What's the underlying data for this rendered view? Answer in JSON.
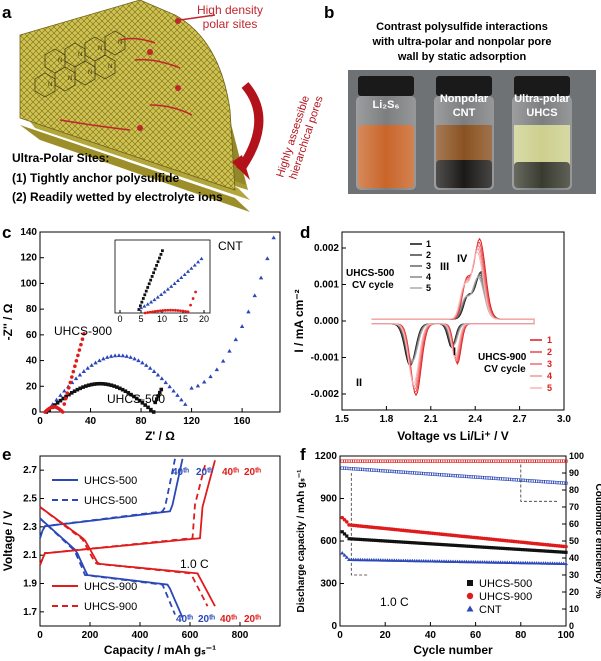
{
  "panel_labels": {
    "a": "a",
    "b": "b",
    "c": "c",
    "d": "d",
    "e": "e",
    "f": "f"
  },
  "panel_a": {
    "callout_top": [
      "High density",
      "polar sites"
    ],
    "callout_arrow": [
      "Highly assessible",
      "hierarchical pores"
    ],
    "title": "Ultra-Polar Sites:",
    "point1": "(1) Tightly anchor polysulfide",
    "point2": "(2) Readily wetted by electrolyte ions",
    "colors": {
      "sheet": "#c9bd4a",
      "arrow": "#b3121b"
    }
  },
  "panel_b": {
    "title": [
      "Contrast polysulfide interactions",
      "with ultra-polar and nonpolar pore",
      "wall by static adsorption"
    ],
    "vial1": [
      "Li₂S₆"
    ],
    "vial2": [
      "Nonpolar",
      "CNT"
    ],
    "vial3": [
      "Ultra-polar",
      "UHCS"
    ],
    "colors": {
      "bg": "#6f7275",
      "li2s6": "#c9652a",
      "cnt": "#8a5222",
      "uhcs": "#cdd08f"
    }
  },
  "chart_data": [
    {
      "panel": "c",
      "type": "scatter",
      "xlabel": "Z' / Ω",
      "ylabel": "-Z'' / Ω",
      "xlim": [
        0,
        190
      ],
      "ylim": [
        0,
        140
      ],
      "xticks": [
        "0",
        "40",
        "80",
        "120",
        "160"
      ],
      "yticks": [
        "0",
        "20",
        "40",
        "60",
        "80",
        "100",
        "120",
        "140"
      ],
      "inset": {
        "xticks": [
          "0",
          "5",
          "10",
          "15",
          "20"
        ],
        "xlim": [
          0,
          21
        ],
        "ylim": [
          0,
          20
        ]
      },
      "labels": {
        "cnt": "CNT",
        "uhcs900": "UHCS-900",
        "uhcs500": "UHCS-500"
      },
      "series": [
        {
          "name": "CNT",
          "color": "#2b47b8",
          "marker": "triangle"
        },
        {
          "name": "UHCS-500",
          "color": "#111111",
          "marker": "square"
        },
        {
          "name": "UHCS-900",
          "color": "#e01b1b",
          "marker": "circle"
        }
      ]
    },
    {
      "panel": "d",
      "type": "line",
      "xlabel": "Voltage vs Li/Li⁺ / V",
      "ylabel": "I / mA cm⁻²",
      "xlim": [
        1.5,
        3.0
      ],
      "ylim": [
        -0.0025,
        0.0025
      ],
      "xticks": [
        "1.5",
        "1.8",
        "2.1",
        "2.4",
        "2.7",
        "3.0"
      ],
      "yticks": [
        "-0.002",
        "-0.001",
        "0.000",
        "0.001",
        "0.002"
      ],
      "legend500_title": [
        "UHCS-500",
        "CV cycle"
      ],
      "legend900_title": [
        "UHCS-900",
        "CV cycle"
      ],
      "cycles": [
        "1",
        "2",
        "3",
        "4",
        "5"
      ],
      "peaks": {
        "I": "I",
        "II": "II",
        "III": "III",
        "IV": "IV"
      },
      "colors500": [
        "#111111",
        "#444444",
        "#666666",
        "#888888",
        "#aaaaaa"
      ],
      "colors900": [
        "#e01b1b",
        "#e8484a",
        "#ee6f70",
        "#f39596",
        "#f7b7b8"
      ]
    },
    {
      "panel": "e",
      "type": "line",
      "xlabel": "Capacity / mAh gₛ⁻¹",
      "ylabel": "Voltage / V",
      "xlim": [
        0,
        800
      ],
      "ylim": [
        1.6,
        2.8
      ],
      "xticks": [
        "0",
        "200",
        "400",
        "600",
        "800"
      ],
      "yticks": [
        "1.7",
        "1.9",
        "2.1",
        "2.3",
        "2.5",
        "2.7"
      ],
      "legend": [
        "UHCS-500",
        "UHCS-500",
        "UHCS-900",
        "UHCS-900"
      ],
      "rate": "1.0 C",
      "cyc40": "40ᵗʰ",
      "cyc20": "20ᵗʰ",
      "colors": {
        "uhcs500": "#2b47b8",
        "uhcs900": "#e01b1b"
      }
    },
    {
      "panel": "f",
      "type": "scatter",
      "xlabel": "Cycle number",
      "ylabel": "Discharge capacity / mAh gₛ⁻¹",
      "y2label": "Coulombic efficiency /%",
      "xlim": [
        0,
        100
      ],
      "ylim": [
        0,
        1200
      ],
      "y2lim": [
        0,
        100
      ],
      "xticks": [
        "0",
        "20",
        "40",
        "60",
        "80",
        "100"
      ],
      "yticks": [
        "0",
        "300",
        "600",
        "900",
        "1200"
      ],
      "y2ticks": [
        "0",
        "10",
        "20",
        "30",
        "40",
        "50",
        "60",
        "70",
        "80",
        "90",
        "100"
      ],
      "rate": "1.0 C",
      "legend": [
        "UHCS-500",
        "UHCS-900",
        "CNT"
      ],
      "series": [
        {
          "name": "UHCS-900",
          "start": 720,
          "end": 560,
          "ce": 97,
          "color": "#e01b1b"
        },
        {
          "name": "UHCS-500",
          "start": 620,
          "end": 520,
          "ce": 97,
          "color": "#111111"
        },
        {
          "name": "CNT",
          "start": 470,
          "end": 440,
          "ce": 85,
          "color": "#2b47b8"
        }
      ]
    }
  ]
}
